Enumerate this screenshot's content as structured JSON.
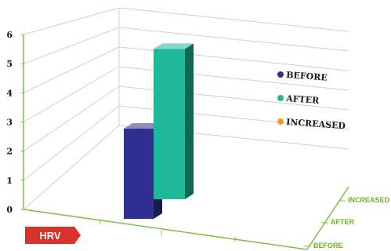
{
  "chart_data": {
    "type": "bar",
    "categories": [
      "HRV"
    ],
    "series": [
      {
        "name": "BEFORE",
        "values": [
          3
        ],
        "color": "#2e2f8f"
      },
      {
        "name": "AFTER",
        "values": [
          5
        ],
        "color": "#1fb89a"
      },
      {
        "name": "INCREASED",
        "values": [
          null
        ],
        "color": "#f39a2a"
      }
    ],
    "ylim": [
      0,
      6
    ],
    "yticks": [
      "0",
      "1",
      "2",
      "3",
      "4",
      "5",
      "6"
    ],
    "depth_labels": [
      "INCREASED",
      "AFTER",
      "BEFORE"
    ],
    "grid": true,
    "legend": "right",
    "axis_color": "#7cc242",
    "badge_color": "#d8322a"
  }
}
